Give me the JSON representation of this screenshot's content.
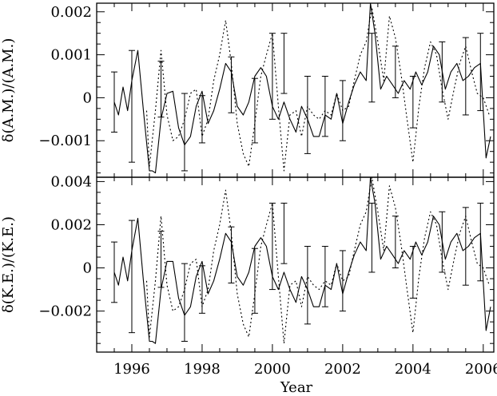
{
  "chart_data": [
    {
      "type": "line",
      "ylabel": "δ(A.M.)/(A.M.)",
      "xlabel": "",
      "xlim": [
        1995.0,
        2006.3
      ],
      "ylim": [
        -0.00185,
        0.0022
      ],
      "xticks": [
        1996,
        1998,
        2000,
        2002,
        2004,
        2006
      ],
      "xtick_labels": [
        "",
        "",
        "",
        "",
        "",
        ""
      ],
      "yticks": [
        -0.001,
        0,
        0.001,
        0.002
      ],
      "ytick_labels": [
        "−0.001",
        "0",
        "0.001",
        "0.002"
      ],
      "series": [
        {
          "style": "solid",
          "x": [
            1995.5,
            1995.62,
            1995.75,
            1995.88,
            1996.0,
            1996.17,
            1996.33,
            1996.5,
            1996.58,
            1996.67,
            1996.83,
            1997.0,
            1997.17,
            1997.33,
            1997.5,
            1997.67,
            1997.83,
            1998.0,
            1998.17,
            1998.33,
            1998.5,
            1998.67,
            1998.83,
            1999.0,
            1999.17,
            1999.33,
            1999.5,
            1999.67,
            1999.83,
            2000.0,
            2000.17,
            2000.33,
            2000.5,
            2000.67,
            2000.83,
            2001.0,
            2001.17,
            2001.33,
            2001.5,
            2001.67,
            2001.83,
            2002.0,
            2002.17,
            2002.33,
            2002.5,
            2002.67,
            2002.79,
            2002.92,
            2003.08,
            2003.25,
            2003.42,
            2003.58,
            2003.75,
            2003.92,
            2004.08,
            2004.25,
            2004.42,
            2004.58,
            2004.75,
            2004.92,
            2005.08,
            2005.25,
            2005.42,
            2005.58,
            2005.75,
            2005.92,
            2006.08,
            2006.21
          ],
          "values": [
            -0.0001,
            -0.0004,
            0.00025,
            -0.0003,
            0.0004,
            0.0011,
            -0.0003,
            -0.0017,
            -0.0017,
            -0.00175,
            -0.0005,
            0.0001,
            0.00015,
            -0.0007,
            -0.0011,
            -0.0009,
            -0.0002,
            0.00015,
            -0.0006,
            -0.0003,
            0.0002,
            0.0008,
            0.0006,
            -0.0002,
            -0.0004,
            -0.0001,
            0.0005,
            0.0007,
            0.0005,
            -0.0002,
            -0.0005,
            -0.0001,
            -0.0005,
            -0.0008,
            -0.0002,
            -0.0005,
            -0.0009,
            -0.0009,
            -0.0004,
            -0.0005,
            0.0001,
            -0.0006,
            -0.0001,
            0.0003,
            0.0006,
            0.0004,
            0.0022,
            0.0015,
            0.0002,
            0.0005,
            0.0003,
            0.0001,
            0.0004,
            0.0002,
            0.0006,
            0.0003,
            0.0006,
            0.0012,
            0.001,
            0.0002,
            0.0006,
            0.0008,
            0.0004,
            0.0005,
            0.0007,
            0.0008,
            -0.0014,
            -0.0009
          ]
        },
        {
          "style": "dotted",
          "x": [
            1996.42,
            1996.5,
            1996.67,
            1996.83,
            1997.0,
            1997.17,
            1997.33,
            1997.5,
            1997.67,
            1997.83,
            1998.0,
            1998.17,
            1998.33,
            1998.5,
            1998.67,
            1998.83,
            1999.0,
            1999.17,
            1999.33,
            1999.5,
            1999.67,
            1999.83,
            2000.0,
            2000.17,
            2000.33,
            2000.5,
            2000.67,
            2000.83,
            2001.0,
            2001.17,
            2001.33,
            2001.5,
            2001.67,
            2001.83,
            2002.0,
            2002.17,
            2002.33,
            2002.5,
            2002.67,
            2002.83,
            2003.0,
            2003.17,
            2003.33,
            2003.5,
            2003.67,
            2003.83,
            2004.0,
            2004.17,
            2004.33,
            2004.5,
            2004.67,
            2004.83,
            2005.0,
            2005.17,
            2005.33,
            2005.5,
            2005.67,
            2005.83,
            2006.0,
            2006.17
          ],
          "values": [
            -0.0003,
            -0.0016,
            -0.0003,
            0.0011,
            -0.0004,
            -0.001,
            -0.0009,
            -0.0005,
            0.0001,
            0.0002,
            -0.0009,
            -0.0005,
            0.0004,
            0.001,
            0.0018,
            0.0008,
            -0.0006,
            -0.0013,
            -0.0016,
            -0.0006,
            0.0005,
            0.001,
            0.0015,
            -0.0002,
            -0.0017,
            -0.0004,
            -0.0003,
            -0.0009,
            -0.0002,
            -0.0004,
            -0.0005,
            -0.0003,
            -0.0004,
            0.0001,
            -0.0003,
            -0.0002,
            0.0004,
            0.001,
            0.0013,
            0.0021,
            0.0013,
            0.0004,
            0.0019,
            0.0014,
            0.0005,
            -0.0005,
            -0.0015,
            -0.0002,
            0.0007,
            0.0013,
            0.001,
            0.0002,
            -0.0005,
            0.0002,
            0.0008,
            0.0012,
            0.0006,
            0.0001,
            0.0,
            -0.0004
          ]
        },
        {
          "style": "errorbars",
          "x": [
            1995.5,
            1996.0,
            1996.83,
            1997.5,
            1998.0,
            1998.83,
            1999.5,
            2000.0,
            2000.33,
            2001.0,
            2001.5,
            2002.0,
            2002.83,
            2003.5,
            2004.0,
            2004.83,
            2005.5,
            2005.92
          ],
          "values": [
            -0.0001,
            -0.0002,
            0.0002,
            -0.0008,
            -0.0005,
            0.0003,
            -0.0003,
            0.0005,
            0.0008,
            -0.0004,
            -0.0002,
            -0.0003,
            0.0007,
            0.0006,
            -0.0001,
            0.0006,
            0.0005,
            0.0006
          ],
          "errors": [
            0.0007,
            0.0013,
            0.00065,
            0.0009,
            0.00055,
            0.00065,
            0.00075,
            0.001,
            0.0007,
            0.0009,
            0.0007,
            0.0007,
            0.0008,
            0.0006,
            0.0006,
            0.0007,
            0.0009,
            0.0009
          ]
        }
      ]
    },
    {
      "type": "line",
      "ylabel": "δ(K.E.)/(K.E.)",
      "xlabel": "Year",
      "xlim": [
        1995.0,
        2006.3
      ],
      "ylim": [
        -0.0039,
        0.0042
      ],
      "xticks": [
        1996,
        1998,
        2000,
        2002,
        2004,
        2006
      ],
      "xtick_labels": [
        "1996",
        "1998",
        "2000",
        "2002",
        "2004",
        "2006"
      ],
      "yticks": [
        -0.002,
        0,
        0.002,
        0.004
      ],
      "ytick_labels": [
        "−0.002",
        "0",
        "0.002",
        "0.004"
      ],
      "series": [
        {
          "style": "solid",
          "x": [
            1995.5,
            1995.62,
            1995.75,
            1995.88,
            1996.0,
            1996.17,
            1996.33,
            1996.5,
            1996.58,
            1996.67,
            1996.83,
            1997.0,
            1997.17,
            1997.33,
            1997.5,
            1997.67,
            1997.83,
            1998.0,
            1998.17,
            1998.33,
            1998.5,
            1998.67,
            1998.83,
            1999.0,
            1999.17,
            1999.33,
            1999.5,
            1999.67,
            1999.83,
            2000.0,
            2000.17,
            2000.33,
            2000.5,
            2000.67,
            2000.83,
            2001.0,
            2001.17,
            2001.33,
            2001.5,
            2001.67,
            2001.83,
            2002.0,
            2002.17,
            2002.33,
            2002.5,
            2002.67,
            2002.79,
            2002.92,
            2003.08,
            2003.25,
            2003.42,
            2003.58,
            2003.75,
            2003.92,
            2004.08,
            2004.25,
            2004.42,
            2004.58,
            2004.75,
            2004.92,
            2005.08,
            2005.25,
            2005.42,
            2005.58,
            2005.75,
            2005.92,
            2006.08,
            2006.21
          ],
          "values": [
            -0.0002,
            -0.0008,
            0.0005,
            -0.0006,
            0.0008,
            0.0023,
            -0.0006,
            -0.0034,
            -0.0034,
            -0.0035,
            -0.001,
            0.0003,
            0.0003,
            -0.0014,
            -0.0022,
            -0.0018,
            -0.0004,
            0.0003,
            -0.0012,
            -0.0006,
            0.0004,
            0.0016,
            0.0012,
            -0.0004,
            -0.0008,
            -0.0002,
            0.001,
            0.0014,
            0.001,
            -0.0004,
            -0.001,
            -0.0002,
            -0.001,
            -0.0016,
            -0.0004,
            -0.001,
            -0.0018,
            -0.0018,
            -0.0008,
            -0.001,
            0.0002,
            -0.0012,
            -0.0002,
            0.0006,
            0.0012,
            0.0008,
            0.0042,
            0.003,
            0.0004,
            0.001,
            0.0006,
            0.0002,
            0.0008,
            0.0004,
            0.0012,
            0.0006,
            0.0012,
            0.0024,
            0.002,
            0.0004,
            0.0012,
            0.0016,
            0.0008,
            0.001,
            0.0014,
            0.0016,
            -0.0029,
            -0.0018
          ]
        },
        {
          "style": "dotted",
          "x": [
            1996.42,
            1996.5,
            1996.67,
            1996.83,
            1997.0,
            1997.17,
            1997.33,
            1997.5,
            1997.67,
            1997.83,
            1998.0,
            1998.17,
            1998.33,
            1998.5,
            1998.67,
            1998.83,
            1999.0,
            1999.17,
            1999.33,
            1999.5,
            1999.67,
            1999.83,
            2000.0,
            2000.17,
            2000.33,
            2000.5,
            2000.67,
            2000.83,
            2001.0,
            2001.17,
            2001.33,
            2001.5,
            2001.67,
            2001.83,
            2002.0,
            2002.17,
            2002.33,
            2002.5,
            2002.67,
            2002.83,
            2003.0,
            2003.17,
            2003.33,
            2003.5,
            2003.67,
            2003.83,
            2004.0,
            2004.17,
            2004.33,
            2004.5,
            2004.67,
            2004.83,
            2005.0,
            2005.17,
            2005.33,
            2005.5,
            2005.67,
            2005.83,
            2006.0,
            2006.17
          ],
          "values": [
            -0.0006,
            -0.0032,
            -0.0006,
            0.0024,
            -0.0008,
            -0.002,
            -0.0018,
            -0.001,
            0.0002,
            0.0004,
            -0.0018,
            -0.001,
            0.0008,
            0.002,
            0.0036,
            0.0016,
            -0.0012,
            -0.0026,
            -0.0032,
            -0.0012,
            0.001,
            0.002,
            0.003,
            -0.0004,
            -0.0035,
            -0.0008,
            -0.0006,
            -0.0018,
            -0.0004,
            -0.0008,
            -0.001,
            -0.0006,
            -0.0008,
            0.0002,
            -0.0006,
            -0.0004,
            0.0008,
            0.002,
            0.0026,
            0.0042,
            0.0026,
            0.0008,
            0.0038,
            0.0028,
            0.001,
            -0.001,
            -0.003,
            -0.0004,
            0.0014,
            0.0026,
            0.002,
            0.0004,
            -0.001,
            0.0004,
            0.0016,
            0.0024,
            0.0012,
            0.0002,
            0.0,
            -0.0008
          ]
        },
        {
          "style": "errorbars",
          "x": [
            1995.5,
            1996.0,
            1996.83,
            1997.5,
            1998.0,
            1998.83,
            1999.5,
            2000.0,
            2000.33,
            2001.0,
            2001.5,
            2002.0,
            2002.83,
            2003.5,
            2004.0,
            2004.83,
            2005.5,
            2005.92
          ],
          "values": [
            -0.0002,
            -0.0004,
            0.0004,
            -0.0016,
            -0.001,
            0.0006,
            -0.0006,
            0.001,
            0.0016,
            -0.0008,
            -0.0004,
            -0.0006,
            0.0014,
            0.0012,
            -0.0002,
            0.0012,
            0.001,
            0.0012
          ],
          "errors": [
            0.0014,
            0.0026,
            0.0013,
            0.0018,
            0.0011,
            0.0013,
            0.0015,
            0.002,
            0.0014,
            0.0018,
            0.0014,
            0.0014,
            0.0016,
            0.0012,
            0.0012,
            0.0014,
            0.0018,
            0.0018
          ]
        }
      ]
    }
  ]
}
